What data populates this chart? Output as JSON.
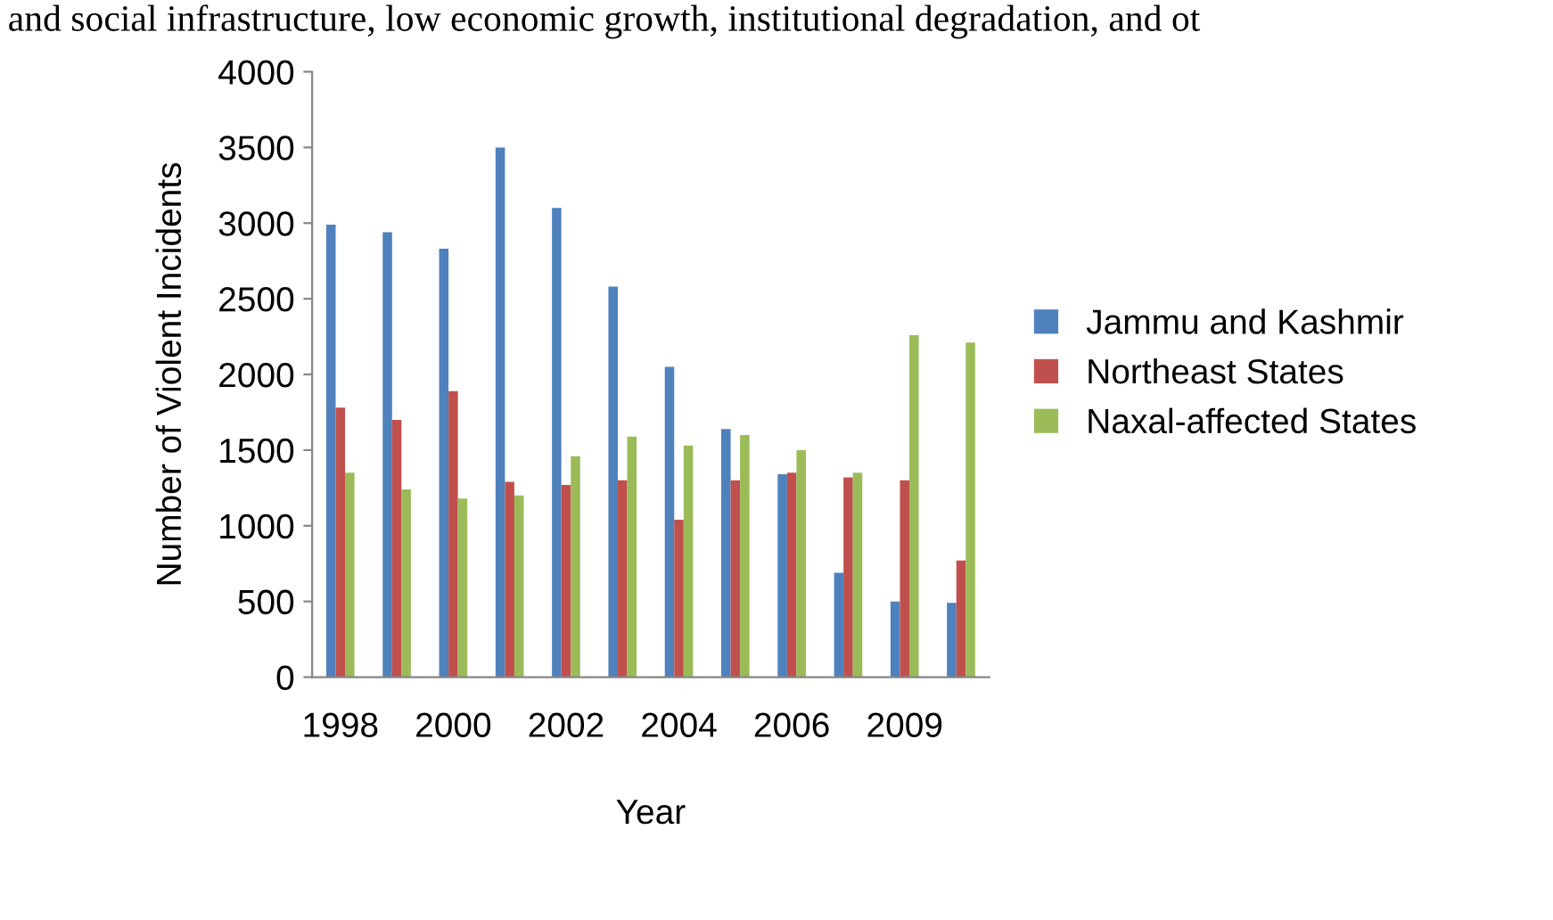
{
  "chart_data": {
    "type": "bar",
    "xlabel": "Year",
    "ylabel": "Number of Violent Incidents",
    "annotations": [
      "and social infrastructure, low economic growth, institutional degradation, and ot"
    ],
    "categories": [
      "1998",
      null,
      "2000",
      null,
      "2002",
      null,
      "2004",
      null,
      "2006",
      null,
      "2009",
      null
    ],
    "series": [
      {
        "name": "Jammu and Kashmir",
        "color": "#4f81bd",
        "values": [
          2990,
          2940,
          2830,
          3500,
          3100,
          2580,
          2050,
          1640,
          1340,
          690,
          500,
          490
        ]
      },
      {
        "name": "Northeast States",
        "color": "#c0504d",
        "values": [
          1780,
          1700,
          1890,
          1290,
          1270,
          1300,
          1040,
          1300,
          1350,
          1320,
          1300,
          770
        ]
      },
      {
        "name": "Naxal-affected States",
        "color": "#9bbb59",
        "values": [
          1350,
          1240,
          1180,
          1200,
          1460,
          1590,
          1530,
          1600,
          1500,
          1350,
          2260,
          2210
        ]
      }
    ],
    "ylim": [
      0,
      4000
    ],
    "yticks": [
      0,
      500,
      1000,
      1500,
      2000,
      2500,
      3000,
      3500,
      4000
    ],
    "grid": false,
    "legend": "right"
  }
}
